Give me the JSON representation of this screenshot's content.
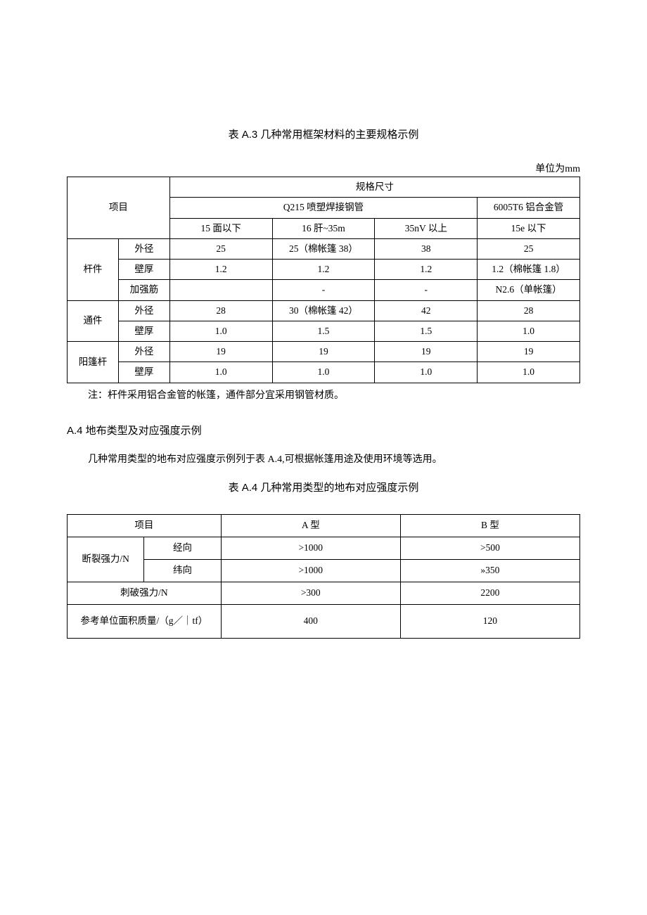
{
  "unit_label": "单位为mm",
  "tableA3": {
    "title": "表 A.3 几种常用框架材料的主要规格示例",
    "colwidths_pct": [
      10,
      10,
      20,
      20,
      20,
      20
    ],
    "header": {
      "item": "项目",
      "spec": "规格尺寸",
      "steel": "Q215 喷塑焊接钢管",
      "alum": "6005T6 铝合金管",
      "sub": [
        "15 面以下",
        "16 肝~35m",
        "35nV 以上",
        "15e 以下"
      ]
    },
    "groups": [
      {
        "name": "杆件",
        "rows": [
          {
            "label": "外径",
            "cells": [
              "25",
              "25（棉帐篷 38）",
              "38",
              "25"
            ]
          },
          {
            "label": "壁厚",
            "cells": [
              "1.2",
              "1.2",
              "1.2",
              "1.2（棉帐篷 1.8）"
            ]
          },
          {
            "label": "加强筋",
            "cells": [
              "",
              "-",
              "-",
              "N2.6（单帐篷）"
            ]
          }
        ]
      },
      {
        "name": "通件",
        "rows": [
          {
            "label": "外径",
            "cells": [
              "28",
              "30（棉帐篷 42）",
              "42",
              "28"
            ]
          },
          {
            "label": "壁厚",
            "cells": [
              "1.0",
              "1.5",
              "1.5",
              "1.0"
            ]
          }
        ]
      },
      {
        "name": "阳篷杆",
        "rows": [
          {
            "label": "外径",
            "cells": [
              "19",
              "19",
              "19",
              "19"
            ]
          },
          {
            "label": "壁厚",
            "cells": [
              "1.0",
              "1.0",
              "1.0",
              "1.0"
            ]
          }
        ]
      }
    ],
    "note": "注：杆件采用铝合金管的帐篷，通件部分宜采用钢管材质。"
  },
  "sectionA4": {
    "heading": "A.4 地布类型及对应强度示例",
    "body": "几种常用类型的地布对应强度示例列于表 A.4,可根据帐篷用途及使用环境等选用。"
  },
  "tableA4": {
    "title": "表 A.4 几种常用类型的地布对应强度示例",
    "colwidths_pct": [
      15,
      15,
      35,
      35
    ],
    "header": [
      "项目",
      "A 型",
      "B 型"
    ],
    "rows": [
      {
        "group": "断裂强力/N",
        "label": "经向",
        "cells": [
          ">1000",
          ">500"
        ]
      },
      {
        "group": "断裂强力/N",
        "label": "纬向",
        "cells": [
          ">1000",
          "»350"
        ]
      },
      {
        "full": "刺破强力/N",
        "cells": [
          ">300",
          "2200"
        ]
      },
      {
        "full": "参考单位面积质量/（g／｜tf）",
        "cells": [
          "400",
          "120"
        ],
        "tall": true
      }
    ]
  }
}
